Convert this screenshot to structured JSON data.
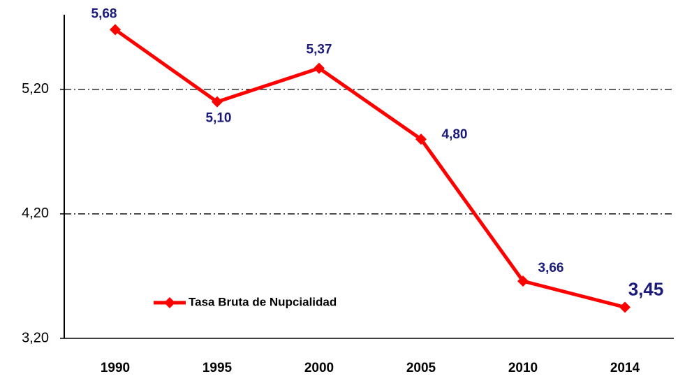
{
  "chart_data": {
    "type": "line",
    "categories": [
      "1990",
      "1995",
      "2000",
      "2005",
      "2010",
      "2014"
    ],
    "series": [
      {
        "name": "Tasa Bruta de Nupcialidad",
        "color": "#ff0000",
        "values": [
          5.68,
          5.1,
          5.37,
          4.8,
          3.66,
          3.45
        ],
        "value_labels": [
          "5,68",
          "5,10",
          "5,37",
          "4,80",
          "3,66",
          "3,45"
        ]
      }
    ],
    "ylim": [
      3.2,
      5.8
    ],
    "yticks": [
      {
        "value": 3.2,
        "label": "3,20"
      },
      {
        "value": 4.2,
        "label": "4,20"
      },
      {
        "value": 5.2,
        "label": "5,20"
      }
    ],
    "grid": true,
    "legend": "lower left"
  }
}
